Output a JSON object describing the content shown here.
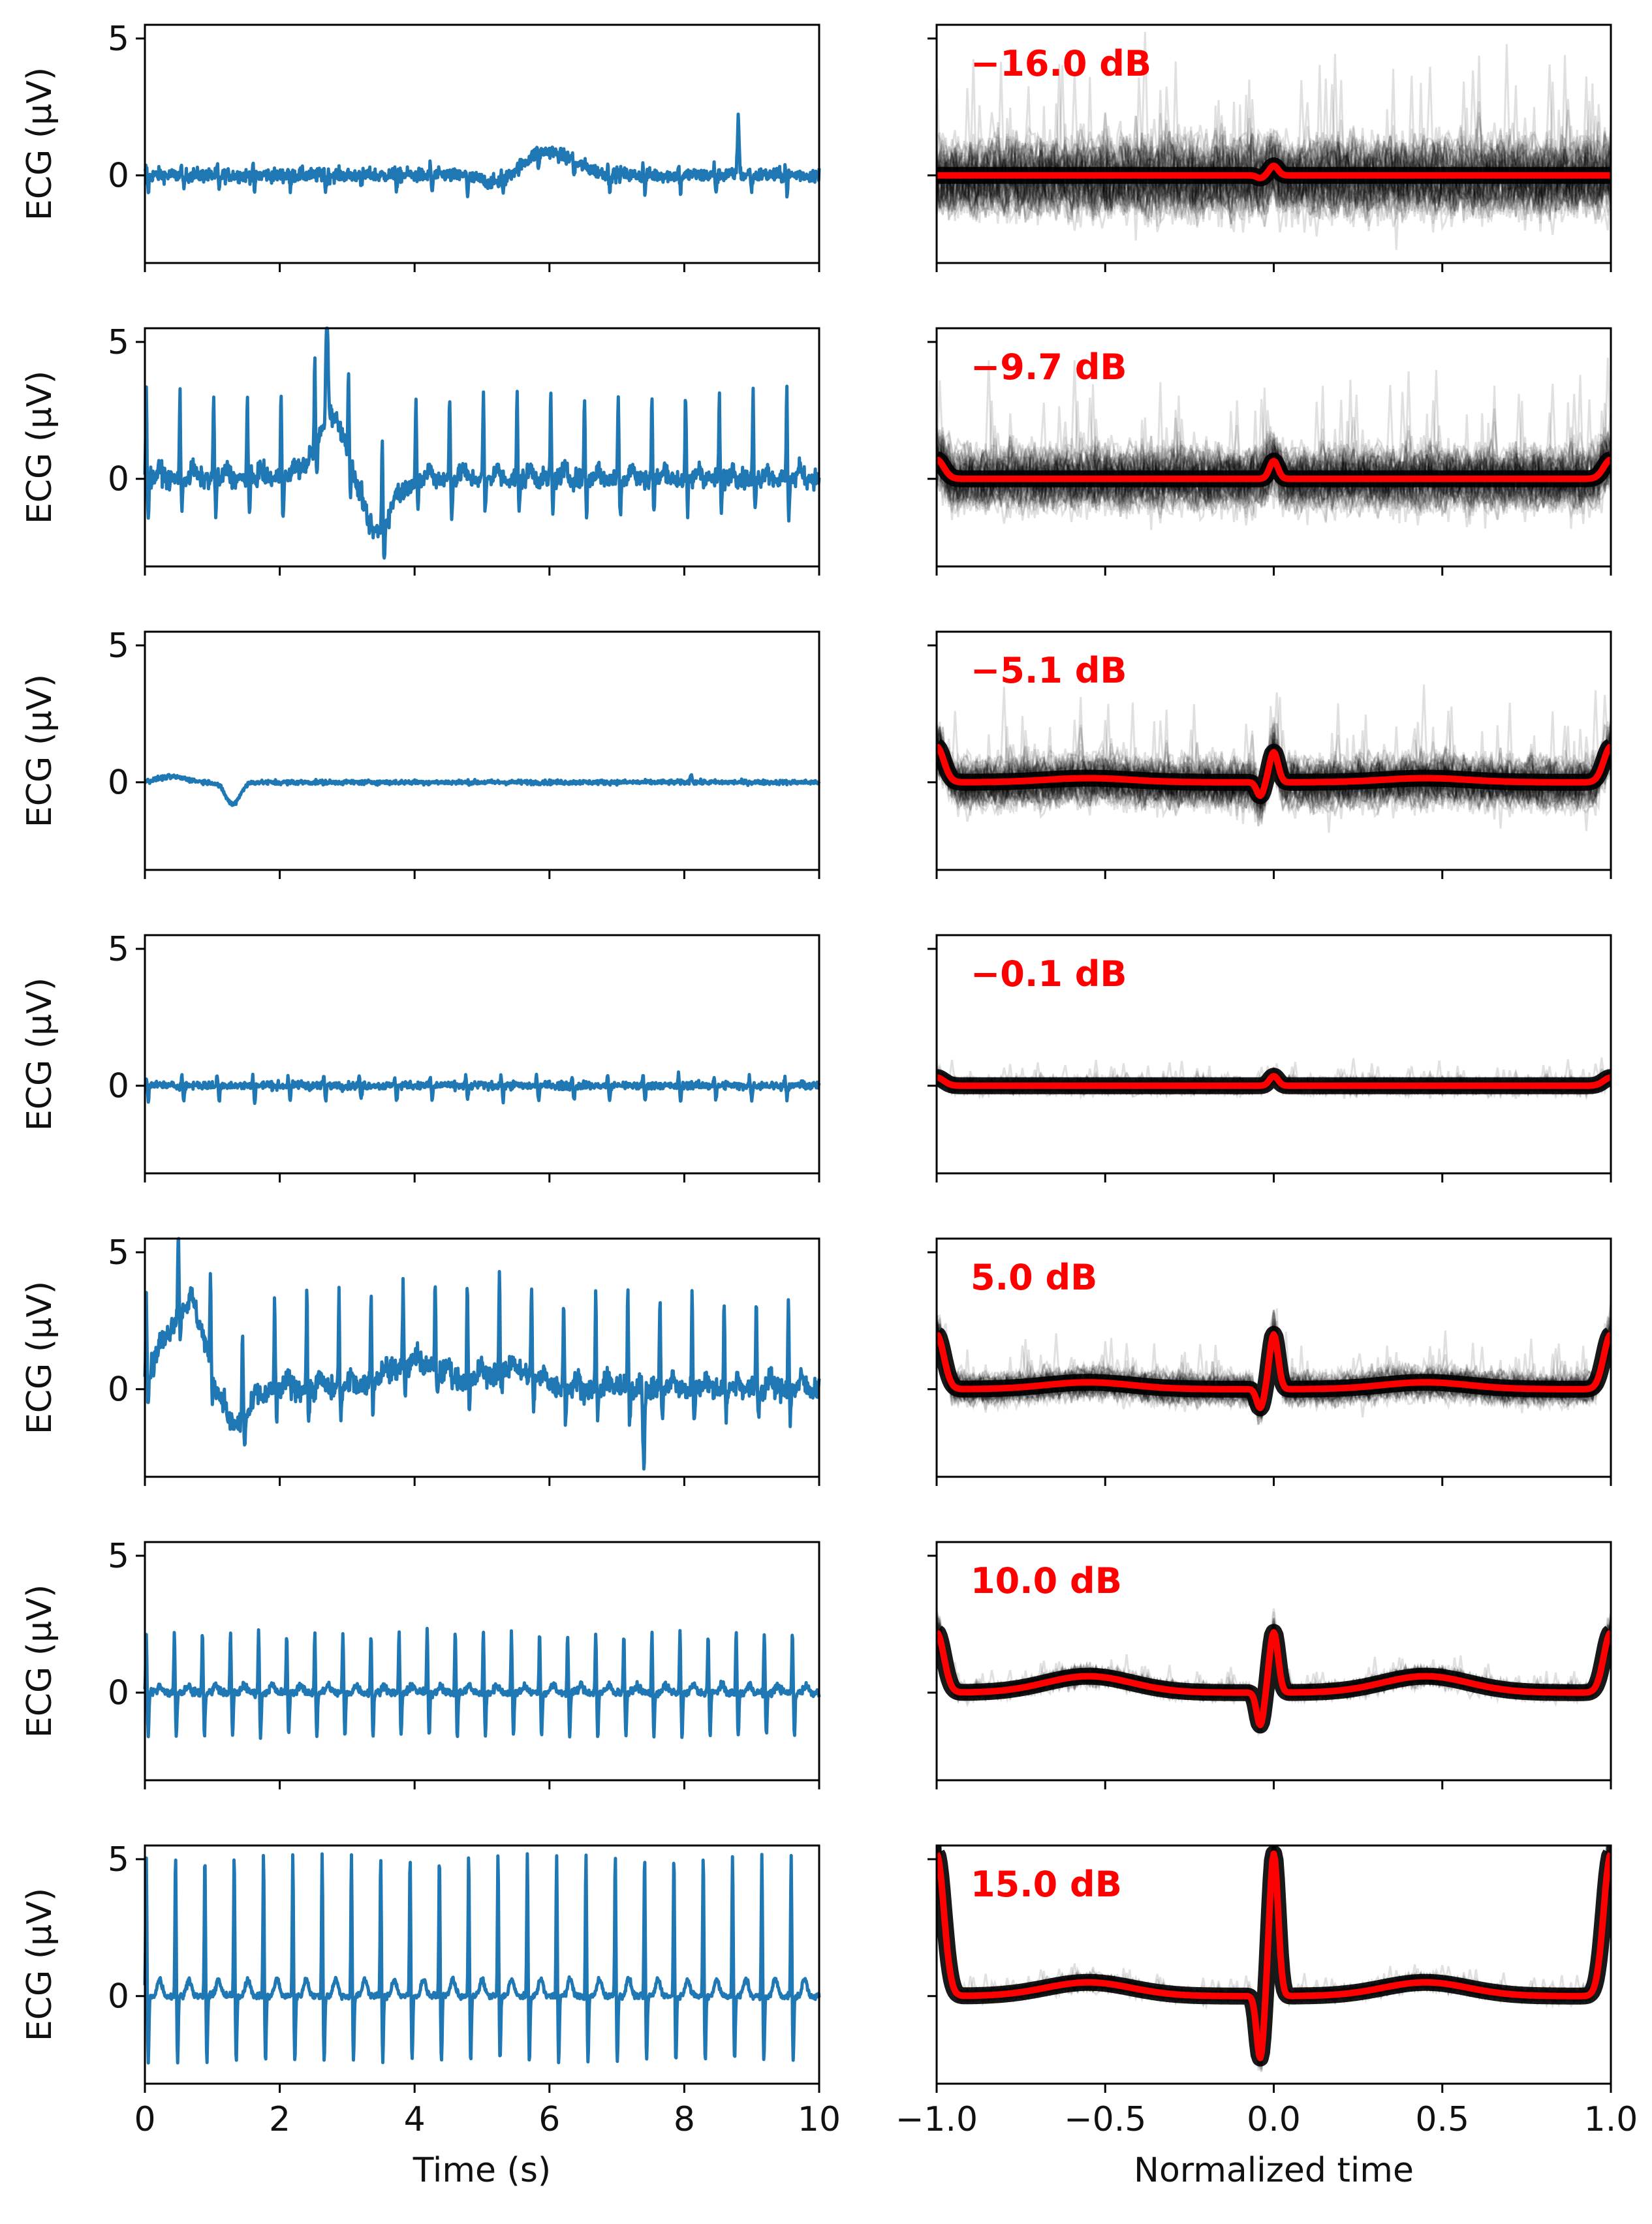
{
  "chart_data": {
    "type": "line",
    "title": "",
    "left_column": {
      "xlabel": "Time (s)",
      "ylabel": "ECG (μV)",
      "xlim": [
        0,
        10
      ],
      "ylim": [
        -3.2,
        5.5
      ],
      "xticks": [
        0,
        2,
        4,
        6,
        8,
        10
      ],
      "xtick_labels": [
        "0",
        "2",
        "4",
        "6",
        "8",
        "10"
      ],
      "yticks": [
        0,
        5
      ],
      "ytick_labels": [
        "0",
        "5"
      ],
      "line_color": "#1f77b4"
    },
    "right_column": {
      "xlabel": "Normalized time",
      "xlim": [
        -1.0,
        1.0
      ],
      "ylim": [
        -3.2,
        5.5
      ],
      "xticks": [
        -1.0,
        -0.5,
        0.0,
        0.5,
        1.0
      ],
      "xtick_labels": [
        "−1.0",
        "−0.5",
        "0.0",
        "0.5",
        "1.0"
      ],
      "mean_color": "#ff0000",
      "trace_color": "#000000",
      "label_color": "#ff0000"
    },
    "rows": [
      {
        "snr_label": "−16.0 dB",
        "ecg": {
          "heart_rate_bps": 1.9,
          "r_peak": 0.3,
          "s_depth": 0.6,
          "noise": 0.18,
          "wander": [
            [
              5.9,
              0.6,
              0.9
            ],
            [
              5.3,
              0.4,
              -0.5
            ]
          ],
          "spikes": [
            [
              8.8,
              2.0
            ]
          ]
        },
        "template": {
          "r": 0.35,
          "s": -0.1,
          "t": 0.0,
          "edge": 0.0,
          "spread": 3.0
        }
      },
      {
        "snr_label": "−9.7 dB",
        "ecg": {
          "heart_rate_bps": 2.0,
          "r_peak": 3.1,
          "s_depth": 1.3,
          "noise": 0.25,
          "wander": [
            [
              2.8,
              0.35,
              2.3
            ],
            [
              3.4,
              0.35,
              -2.0
            ]
          ],
          "spikes": [
            [
              2.7,
              4.4
            ]
          ]
        },
        "template": {
          "r": 0.65,
          "s": 0.0,
          "t": 0.0,
          "edge": 0.7,
          "spread": 2.5
        }
      },
      {
        "snr_label": "−5.1 dB",
        "ecg": {
          "heart_rate_bps": 1.9,
          "r_peak": 0.0,
          "s_depth": 0.0,
          "noise": 0.06,
          "wander": [
            [
              1.3,
              0.15,
              -0.8
            ],
            [
              0.4,
              0.3,
              0.2
            ]
          ],
          "spikes": [
            [
              8.1,
              0.3
            ]
          ]
        },
        "template": {
          "r": 1.1,
          "s": -0.5,
          "t": 0.15,
          "edge": 1.3,
          "spread": 2.0
        }
      },
      {
        "snr_label": "−0.1 dB",
        "ecg": {
          "heart_rate_bps": 1.9,
          "r_peak": 0.35,
          "s_depth": 0.55,
          "noise": 0.1,
          "wander": [],
          "spikes": []
        },
        "template": {
          "r": 0.35,
          "s": 0.0,
          "t": 0.0,
          "edge": 0.3,
          "spread": 0.6
        }
      },
      {
        "snr_label": "5.0 dB",
        "ecg": {
          "heart_rate_bps": 2.1,
          "r_peak": 3.4,
          "s_depth": 1.1,
          "noise": 0.3,
          "wander": [
            [
              0.7,
              0.5,
              3.4
            ],
            [
              1.2,
              0.4,
              -2.2
            ],
            [
              4.0,
              0.6,
              0.9
            ],
            [
              5.4,
              0.5,
              0.7
            ]
          ],
          "spikes": [
            [
              7.4,
              -3.2
            ]
          ]
        },
        "template": {
          "r": 2.0,
          "s": -0.7,
          "t": 0.25,
          "edge": 2.0,
          "spread": 1.2
        }
      },
      {
        "snr_label": "10.0 dB",
        "ecg": {
          "heart_rate_bps": 2.4,
          "r_peak": 2.2,
          "s_depth": 1.6,
          "noise": 0.1,
          "wander": [],
          "spikes": []
        },
        "template": {
          "r": 2.2,
          "s": -1.2,
          "t": 0.6,
          "edge": 2.2,
          "spread": 0.6
        }
      },
      {
        "snr_label": "15.0 dB",
        "ecg": {
          "heart_rate_bps": 2.3,
          "r_peak": 5.2,
          "s_depth": 2.4,
          "noise": 0.08,
          "wander": [],
          "spikes": []
        },
        "template": {
          "r": 5.2,
          "s": -2.3,
          "t": 0.5,
          "edge": 5.2,
          "spread": 0.5
        }
      }
    ]
  }
}
